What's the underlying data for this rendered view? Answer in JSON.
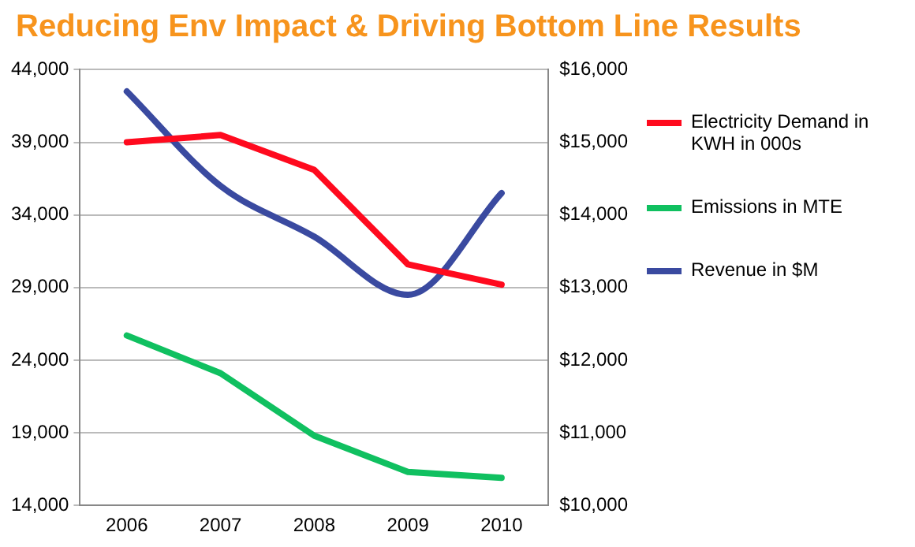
{
  "chart_data": {
    "type": "line",
    "title": "Reducing Env Impact & Driving Bottom Line Results",
    "categories": [
      "2006",
      "2007",
      "2008",
      "2009",
      "2010"
    ],
    "series": [
      {
        "name": "Electricity Demand in KWH in 000s",
        "color": "#ff0a1e",
        "values": [
          39000,
          39500,
          37100,
          30600,
          29200
        ]
      },
      {
        "name": "Emissions in MTE",
        "color": "#10c060",
        "values": [
          25700,
          23100,
          18800,
          16300,
          15900
        ]
      },
      {
        "name": "Revenue in $M",
        "color": "#3a4aa0",
        "values": [
          15700,
          14400,
          13700,
          12900,
          14300
        ],
        "axis": "y2"
      }
    ],
    "ylim": [
      14000,
      44000
    ],
    "yticks": [
      {
        "value": 14000,
        "label": "14,000"
      },
      {
        "value": 19000,
        "label": "19,000"
      },
      {
        "value": 24000,
        "label": "24,000"
      },
      {
        "value": 29000,
        "label": "29,000"
      },
      {
        "value": 34000,
        "label": "34,000"
      },
      {
        "value": 39000,
        "label": "39,000"
      },
      {
        "value": 44000,
        "label": "44,000"
      }
    ],
    "y2lim": [
      10000,
      16000
    ],
    "y2ticks": [
      {
        "value": 10000,
        "label": "$10,000"
      },
      {
        "value": 11000,
        "label": "$11,000"
      },
      {
        "value": 12000,
        "label": "$12,000"
      },
      {
        "value": 13000,
        "label": "$13,000"
      },
      {
        "value": 14000,
        "label": "$14,000"
      },
      {
        "value": 15000,
        "label": "$15,000"
      },
      {
        "value": 16000,
        "label": "$16,000"
      }
    ],
    "grid": "y",
    "legend": "right",
    "marker": "none",
    "line_style": "solid"
  }
}
